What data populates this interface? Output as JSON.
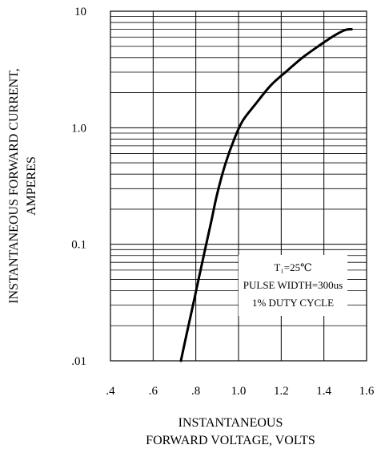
{
  "chart_data": {
    "type": "line",
    "title": "",
    "xlabel_lines": [
      "INSTANTANEOUS",
      "FORWARD VOLTAGE, VOLTS"
    ],
    "ylabel_lines": [
      "INSTANTANEOUS FORWARD CURRENT,",
      "AMPERES"
    ],
    "x_scale": "linear",
    "y_scale": "log",
    "xlim": [
      0.4,
      1.6
    ],
    "ylim": [
      0.01,
      10
    ],
    "x_ticks": [
      0.4,
      0.6,
      0.8,
      1.0,
      1.2,
      1.4,
      1.6
    ],
    "x_tick_labels": [
      ".4",
      ".6",
      ".8",
      "1.0",
      "1.2",
      "1.4",
      "1.6"
    ],
    "y_ticks": [
      0.01,
      0.1,
      1.0,
      10
    ],
    "y_tick_labels": [
      ".01",
      "0.1",
      "1.0",
      "10"
    ],
    "grid": true,
    "series": [
      {
        "color": "#000000",
        "x": [
          0.73,
          0.76,
          0.79,
          0.83,
          0.87,
          0.9,
          0.94,
          0.98,
          1.02,
          1.08,
          1.15,
          1.22,
          1.3,
          1.38,
          1.45,
          1.5,
          1.53
        ],
        "y": [
          0.01,
          0.018,
          0.032,
          0.07,
          0.15,
          0.27,
          0.5,
          0.8,
          1.15,
          1.6,
          2.3,
          3.0,
          4.0,
          5.1,
          6.2,
          6.9,
          7.0
        ]
      }
    ],
    "annotation_lines": [
      "T₁=25℃",
      "PULSE WIDTH=300us",
      "1% DUTY CYCLE"
    ]
  }
}
